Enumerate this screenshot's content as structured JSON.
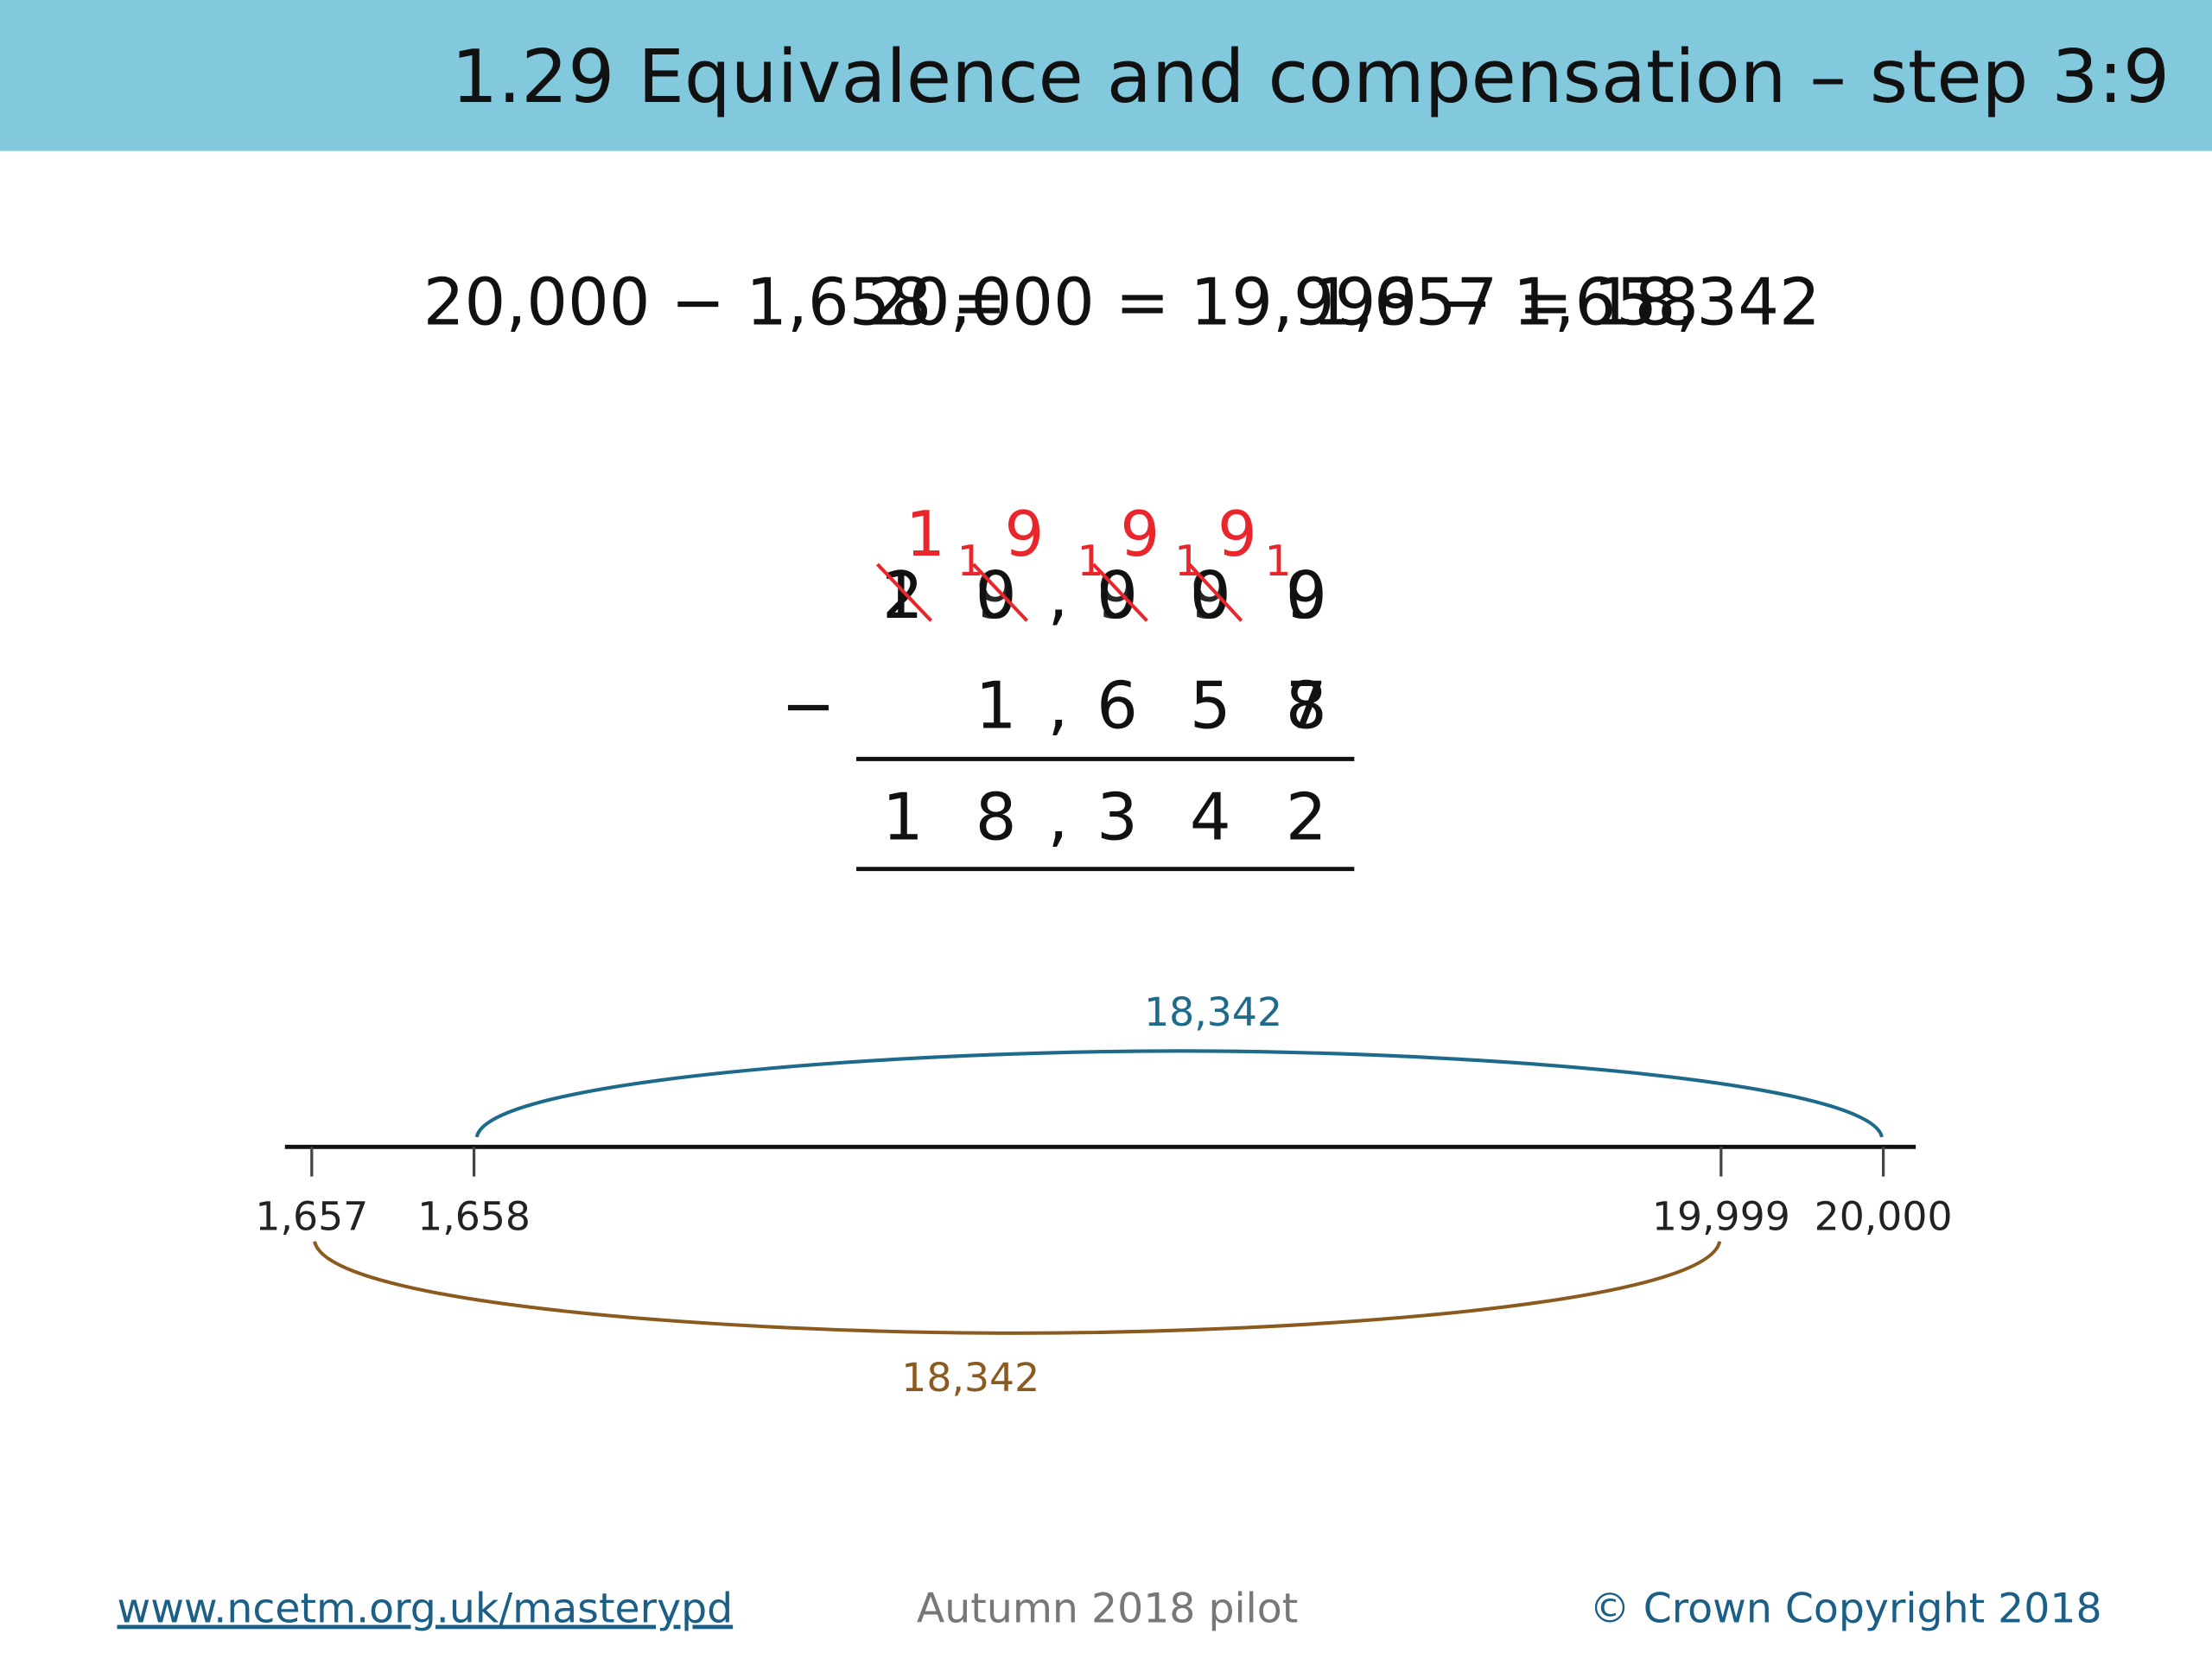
{
  "header": {
    "title": "1.29 Equivalence and compensation – step 3:9"
  },
  "equation": {
    "part1": "20,000 − 1,658 =",
    "part2": "20,000 = 19,999 − 1,658",
    "part3": "1,657 = 18,342"
  },
  "column": {
    "top": [
      "2",
      "0",
      ",",
      "0",
      "0",
      "0"
    ],
    "top_overlay": [
      "1",
      "9",
      "9",
      "9",
      "9"
    ],
    "exchange": [
      "1",
      "9",
      "9",
      "9"
    ],
    "carry": [
      "1",
      "1",
      "1",
      "1"
    ],
    "operator": "−",
    "second": [
      "1",
      ",",
      "6",
      "5",
      "8"
    ],
    "second_overlay": "7",
    "result": [
      "1",
      "8",
      ",",
      "3",
      "4",
      "2"
    ]
  },
  "number_line": {
    "labels": [
      "1,657",
      "1,658",
      "19,999",
      "20,000"
    ],
    "top_jump": "18,342",
    "bottom_jump": "18,342"
  },
  "footer": {
    "link": "www.ncetm.org.uk/masterypd",
    "center": "Autumn 2018 pilot",
    "right": "© Crown Copyright 2018"
  }
}
